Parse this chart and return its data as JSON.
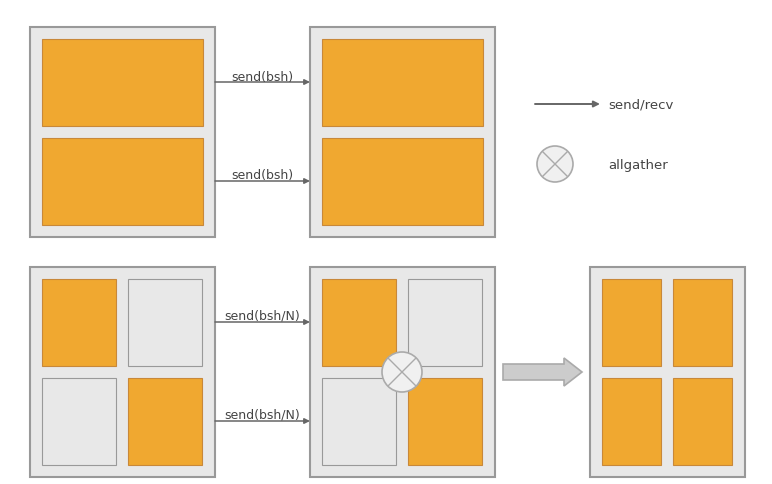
{
  "bg_color": "#ffffff",
  "box_outer_fill": "#e8e8e8",
  "box_border_color": "#999999",
  "orange_fill": "#f0a830",
  "orange_border": "#c8883a",
  "gray_cell_fill": "#e8e8e8",
  "arrow_color": "#666666",
  "text_color": "#444444",
  "allgather_circle_fill": "#f0f0f0",
  "allgather_circle_edge": "#aaaaaa",
  "big_arrow_fill": "#cccccc",
  "big_arrow_edge": "#aaaaaa",
  "legend_arrow_text": "send/recv",
  "legend_circle_text": "allgather",
  "top_labels": [
    "send(bsh)",
    "send(bsh)"
  ],
  "bottom_labels": [
    "send(bsh/N)",
    "send(bsh/N)"
  ],
  "fig_width": 7.72,
  "fig_height": 4.85,
  "dpi": 100
}
